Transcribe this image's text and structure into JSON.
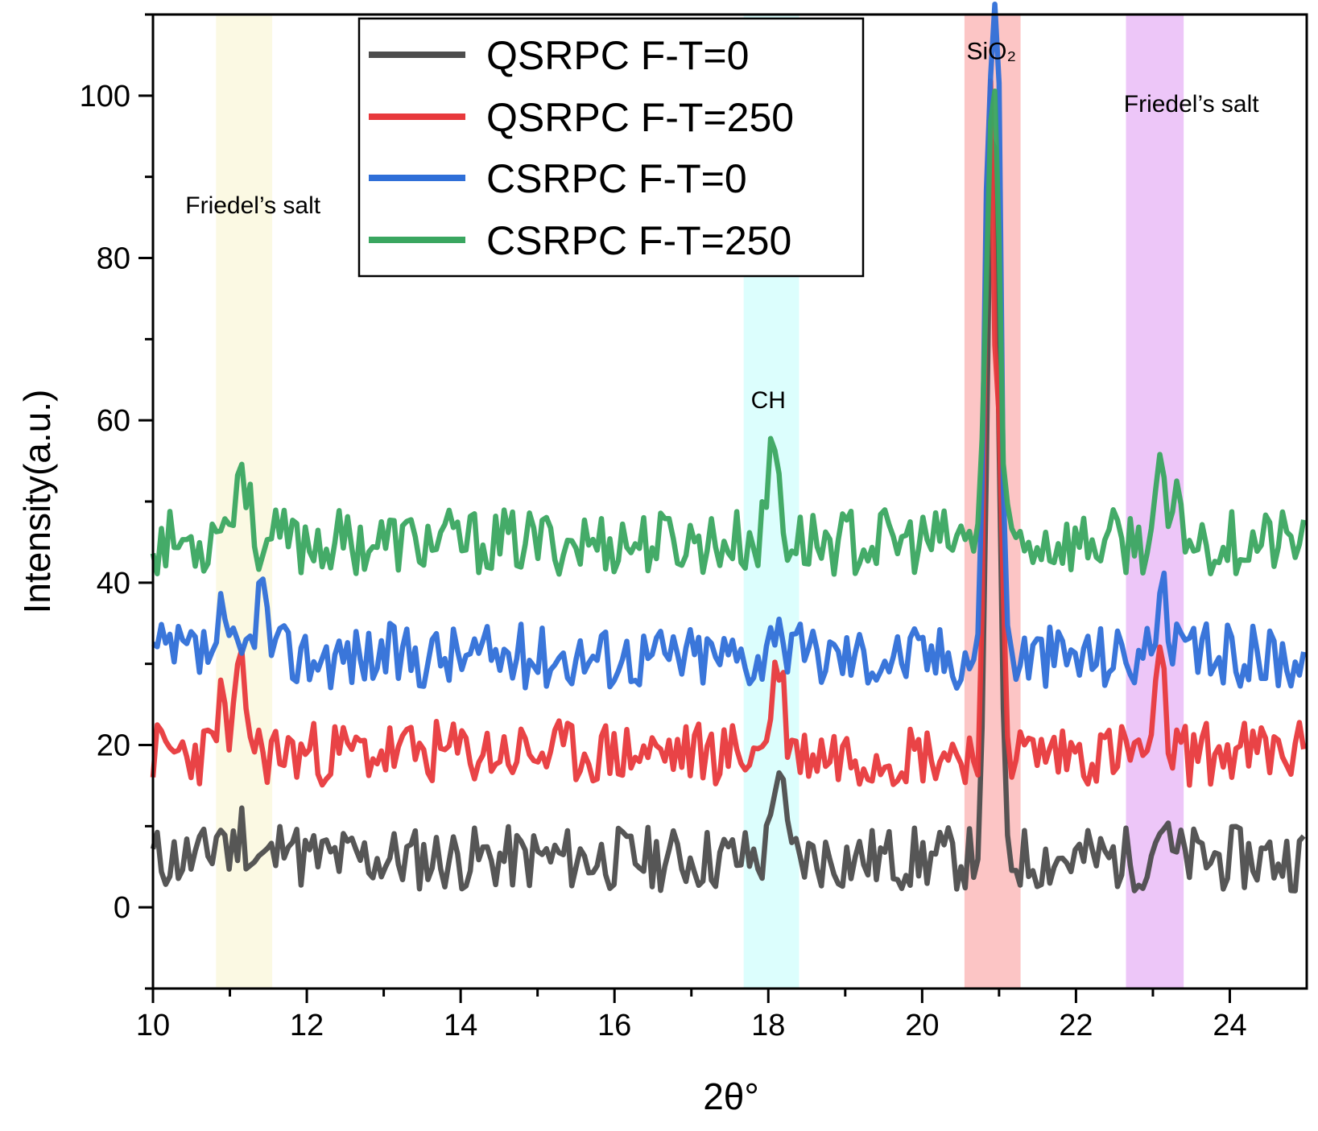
{
  "chart_data": {
    "type": "line",
    "title": "",
    "xlabel": "2θ°",
    "ylabel": "Intensity(a.u.)",
    "xlim": [
      10,
      25
    ],
    "ylim": [
      -10,
      110
    ],
    "x_ticks": [
      "10",
      "12",
      "14",
      "16",
      "18",
      "20",
      "22",
      "24"
    ],
    "y_ticks": [
      "0",
      "20",
      "40",
      "60",
      "80",
      "100"
    ],
    "legend_position": "top-center",
    "series": [
      {
        "name": "QSRPC F-T=0",
        "color": "#4d4d4d",
        "baseline": 6,
        "noise": 2.5,
        "seed": 11,
        "peaks": [
          {
            "x": 10.87,
            "h": 4,
            "w": 0.06
          },
          {
            "x": 11.15,
            "h": 4,
            "w": 0.06
          },
          {
            "x": 11.75,
            "h": 5,
            "w": 0.06
          },
          {
            "x": 18.12,
            "h": 12,
            "w": 0.07
          },
          {
            "x": 20.92,
            "h": 95,
            "w": 0.07
          },
          {
            "x": 23.1,
            "h": 5,
            "w": 0.06
          }
        ]
      },
      {
        "name": "QSRPC F-T=250",
        "color": "#e8393c",
        "baseline": 19,
        "noise": 2.5,
        "seed": 23,
        "peaks": [
          {
            "x": 10.87,
            "h": 7,
            "w": 0.05
          },
          {
            "x": 11.15,
            "h": 9,
            "w": 0.08
          },
          {
            "x": 18.12,
            "h": 11,
            "w": 0.08
          },
          {
            "x": 20.87,
            "h": 82,
            "w": 0.05
          },
          {
            "x": 21.0,
            "h": 40,
            "w": 0.05
          },
          {
            "x": 23.1,
            "h": 10,
            "w": 0.06
          }
        ]
      },
      {
        "name": "CSRPC F-T=0",
        "color": "#2f6fd8",
        "baseline": 31,
        "noise": 2.5,
        "seed": 37,
        "peaks": [
          {
            "x": 10.87,
            "h": 4,
            "w": 0.05
          },
          {
            "x": 11.4,
            "h": 8,
            "w": 0.08
          },
          {
            "x": 18.12,
            "h": 6,
            "w": 0.06
          },
          {
            "x": 20.87,
            "h": 64,
            "w": 0.06
          },
          {
            "x": 20.98,
            "h": 68,
            "w": 0.05
          },
          {
            "x": 23.1,
            "h": 8,
            "w": 0.07
          }
        ]
      },
      {
        "name": "CSRPC F-T=250",
        "color": "#3aa660",
        "baseline": 45,
        "noise": 2.5,
        "seed": 53,
        "peaks": [
          {
            "x": 10.87,
            "h": 5,
            "w": 0.05
          },
          {
            "x": 11.15,
            "h": 10,
            "w": 0.08
          },
          {
            "x": 18.07,
            "h": 13,
            "w": 0.07
          },
          {
            "x": 20.92,
            "h": 56,
            "w": 0.08
          },
          {
            "x": 23.1,
            "h": 7,
            "w": 0.07
          },
          {
            "x": 23.35,
            "h": 5,
            "w": 0.05
          }
        ]
      }
    ],
    "highlight_bands": [
      {
        "x0": 10.82,
        "x1": 11.55,
        "color": "#fbf9e3",
        "label": "Friedel’s salt",
        "label_x": 11.3,
        "label_y": 85.5
      },
      {
        "x0": 17.68,
        "x1": 18.4,
        "color": "#dcfefd",
        "label": "CH",
        "label_x": 18.0,
        "label_y": 61.5
      },
      {
        "x0": 20.55,
        "x1": 21.28,
        "color": "#fcc5c5",
        "label": "SiO₂",
        "label_x": 20.9,
        "label_y": 104.5
      },
      {
        "x0": 22.65,
        "x1": 23.4,
        "color": "#edc6f8",
        "label": "Friedel’s salt",
        "label_x": 23.5,
        "label_y": 98.0
      }
    ]
  }
}
